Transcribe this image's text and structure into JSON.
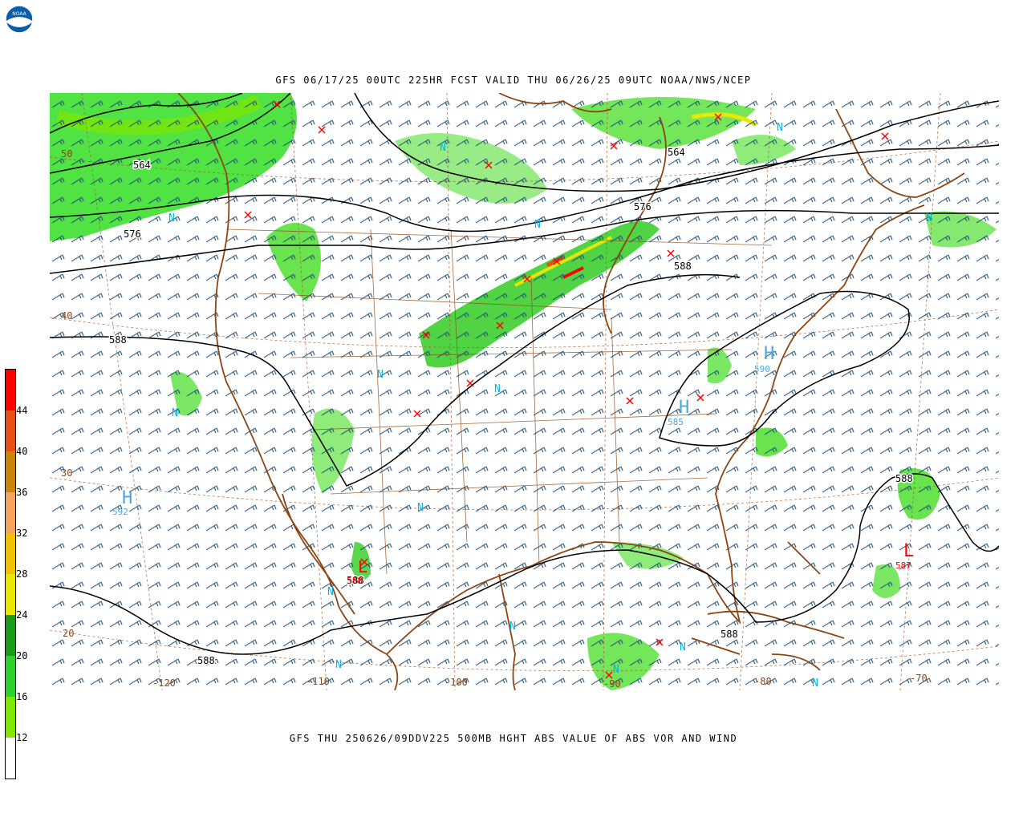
{
  "header": {
    "logo_text": "NOAA",
    "title": "GFS 06/17/25 00UTC 225HR FCST VALID THU 06/26/25 09UTC NOAA/NWS/NCEP"
  },
  "footer": {
    "title": "GFS THU 250626/09DDV225 500MB HGHT ABS VALUE OF ABS VOR AND WIND"
  },
  "colors": {
    "contour": "#000000",
    "coastline": "#8B4513",
    "wind_barb": "#1f4e79",
    "n_marker": "#00b4e6",
    "high_marker": "#4aa8e0",
    "low_marker": "#ff0000",
    "vort_max": "#ff0000"
  },
  "color_scale": {
    "labels": [
      "44",
      "40",
      "36",
      "32",
      "28",
      "24",
      "20",
      "16",
      "12"
    ],
    "colors": [
      "#ff0000",
      "#e8501a",
      "#c8860a",
      "#f4a460",
      "#f2c200",
      "#e8e800",
      "#1a9a1a",
      "#2ed12e",
      "#80e800",
      "#ffffff"
    ]
  },
  "map": {
    "latitude_labels": [
      "50",
      "40",
      "30",
      "20"
    ],
    "longitude_labels": [
      "-120",
      "-110",
      "-100",
      "-90",
      "-80",
      "-70"
    ],
    "contour_labels": [
      "564",
      "564",
      "576",
      "576",
      "588",
      "588",
      "588",
      "588",
      "588",
      "588"
    ],
    "n_marker": "N",
    "pressure_systems": [
      {
        "type": "H",
        "value": "592"
      },
      {
        "type": "H",
        "value": "590"
      },
      {
        "type": "H",
        "value": "585"
      },
      {
        "type": "L",
        "value": "587"
      },
      {
        "type": "L",
        "value": "588"
      }
    ]
  }
}
